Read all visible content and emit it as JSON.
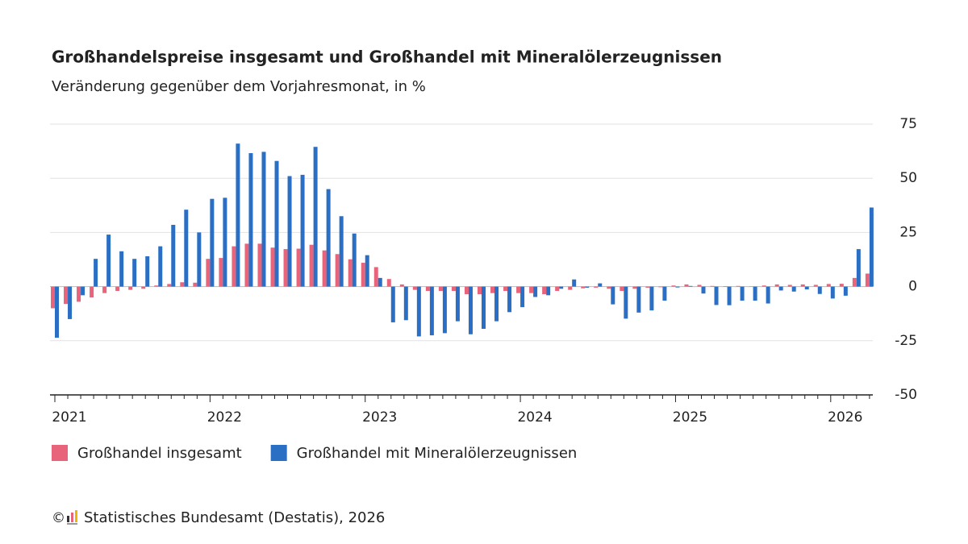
{
  "chart_data": {
    "type": "bar",
    "title": "Großhandelspreise insgesamt und Großhandel mit Mineralölerzeugnissen",
    "subtitle": "Veränderung gegenüber dem Vorjahresmonat, in %",
    "categories": [
      "2021",
      null,
      null,
      null,
      null,
      null,
      null,
      null,
      null,
      null,
      null,
      null,
      "2022",
      null,
      null,
      null,
      null,
      null,
      null,
      null,
      null,
      null,
      null,
      null,
      "2023",
      null,
      null,
      null,
      null,
      null,
      null,
      null,
      null,
      null,
      null,
      null,
      "2024",
      null,
      null,
      null,
      null,
      null,
      null,
      null,
      null,
      null,
      null,
      null,
      "2025",
      null,
      null,
      null,
      null,
      null,
      null,
      null,
      null,
      null,
      null,
      null,
      "2026",
      null,
      null,
      null
    ],
    "series": [
      {
        "name": "Großhandel insgesamt",
        "color": "#e8647a",
        "values": [
          -10,
          -8,
          -7,
          -5,
          -3,
          -2,
          -1.5,
          -1,
          0.5,
          1.2,
          2,
          1.8,
          12.8,
          13.2,
          18.6,
          19.8,
          19.8,
          18,
          17.3,
          17.5,
          19.3,
          16.7,
          15,
          12.6,
          11,
          9,
          3.5,
          1,
          -1.5,
          -2,
          -2,
          -2,
          -3.5,
          -3.5,
          -3,
          -2,
          -3,
          -3,
          -3.5,
          -2,
          -1.5,
          -0.8,
          -0.5,
          -1,
          -2,
          -1,
          -0.5,
          -0.3,
          0.5,
          1,
          0.8,
          0.3,
          0.2,
          0.3,
          0.1,
          0.5,
          1,
          0.8,
          1,
          0.8,
          1.2,
          1.3,
          4,
          6
        ]
      },
      {
        "name": "Großhandel mit Mineralölerzeugnissen",
        "color": "#2b6fc4",
        "values": [
          -23.6,
          -15,
          -4,
          12.8,
          24,
          16.3,
          12.8,
          14,
          18.6,
          28.5,
          35.5,
          25,
          40.5,
          41,
          66,
          61.6,
          62.2,
          58,
          51,
          51.6,
          64.5,
          45,
          32.5,
          24.5,
          14.5,
          4,
          -16.5,
          -15.5,
          -23,
          -22.5,
          -21.5,
          -16,
          -22,
          -19.5,
          -16,
          -11.8,
          -9.5,
          -4.8,
          -4,
          -1,
          3.3,
          -0.5,
          1.5,
          -8.2,
          -14.8,
          -12,
          -11,
          -6.5,
          -0.4,
          0.3,
          -3.2,
          -8.5,
          -8.6,
          -6.5,
          -6.5,
          -7.8,
          -1.8,
          -2.3,
          -1.3,
          -3.4,
          -5.5,
          -4.2,
          17.3,
          36.5
        ]
      }
    ],
    "ylim": [
      -50,
      75
    ],
    "yticks": [
      -50,
      -25,
      0,
      25,
      50,
      75
    ],
    "grid": true,
    "y_axis_side": "right",
    "copyright": "©",
    "source": "Statistisches Bundesamt (Destatis), 2026"
  }
}
